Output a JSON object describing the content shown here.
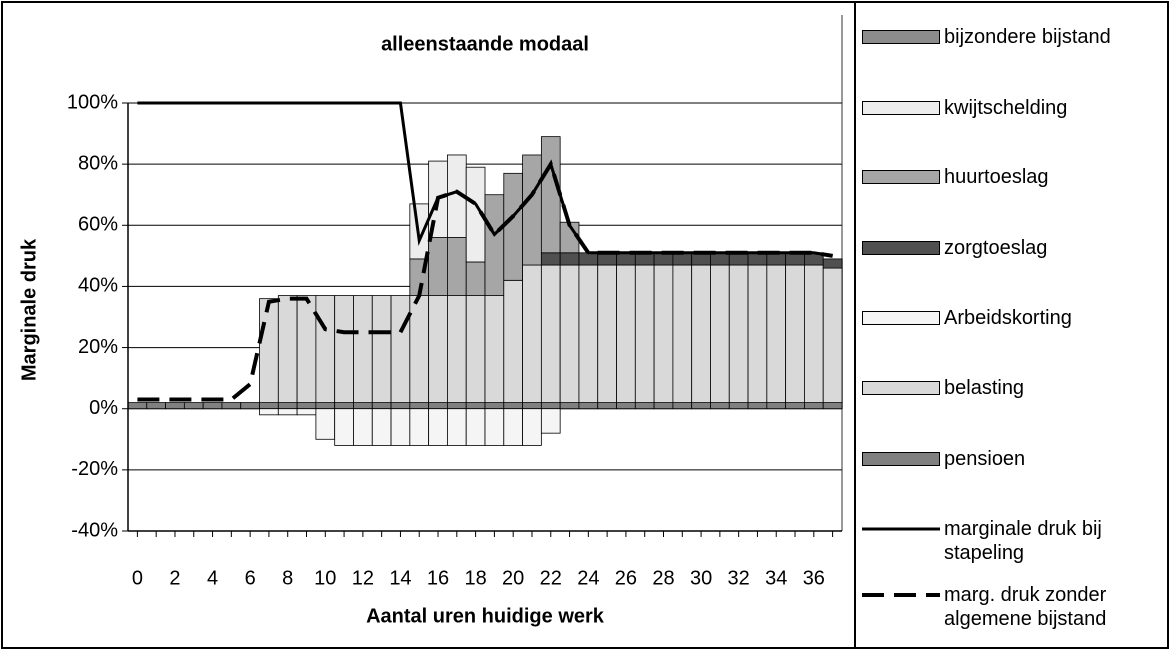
{
  "chart_data": {
    "type": "bar",
    "stacked": true,
    "title": "alleenstaande modaal",
    "x_label": "Aantal uren huidige werk",
    "y_label": "Marginale druk",
    "x": [
      0,
      1,
      2,
      3,
      4,
      5,
      6,
      7,
      8,
      9,
      10,
      11,
      12,
      13,
      14,
      15,
      16,
      17,
      18,
      19,
      20,
      21,
      22,
      23,
      24,
      25,
      26,
      27,
      28,
      29,
      30,
      31,
      32,
      33,
      34,
      35,
      36,
      37
    ],
    "xlim": [
      -0.5,
      37.5
    ],
    "xticks": [
      0,
      2,
      4,
      6,
      8,
      10,
      12,
      14,
      16,
      18,
      20,
      22,
      24,
      26,
      28,
      30,
      32,
      34,
      36
    ],
    "ylim": [
      -40,
      100
    ],
    "yticks": [
      {
        "value": -40,
        "label": "-40%"
      },
      {
        "value": -20,
        "label": "-20%"
      },
      {
        "value": 0,
        "label": "0%"
      },
      {
        "value": 20,
        "label": "20%"
      },
      {
        "value": 40,
        "label": "40%"
      },
      {
        "value": 60,
        "label": "60%"
      },
      {
        "value": 80,
        "label": "80%"
      },
      {
        "value": 100,
        "label": "100%"
      }
    ],
    "grid": true,
    "legend": "right",
    "series": [
      {
        "name": "bijzondere bijstand",
        "color": "#8c8c8c",
        "values": [
          0,
          0,
          0,
          0,
          0,
          0,
          0,
          0,
          0,
          0,
          0,
          0,
          0,
          0,
          0,
          0,
          0,
          0,
          0,
          0,
          0,
          0,
          0,
          0,
          0,
          0,
          0,
          0,
          0,
          0,
          0,
          0,
          0,
          0,
          0,
          0,
          0,
          0
        ]
      },
      {
        "name": "kwijtschelding",
        "color": "#ededed",
        "values": [
          0,
          0,
          0,
          0,
          0,
          0,
          0,
          0,
          0,
          0,
          0,
          0,
          0,
          0,
          0,
          18,
          25,
          27,
          31,
          0,
          0,
          0,
          0,
          0,
          0,
          0,
          0,
          0,
          0,
          0,
          0,
          0,
          0,
          0,
          0,
          0,
          0,
          0
        ]
      },
      {
        "name": "huurtoeslag",
        "color": "#a6a6a6",
        "values": [
          0,
          0,
          0,
          0,
          0,
          0,
          0,
          0,
          0,
          0,
          0,
          0,
          0,
          0,
          0,
          12,
          19,
          19,
          11,
          33,
          35,
          36,
          38,
          10,
          0,
          0,
          0,
          0,
          0,
          0,
          0,
          0,
          0,
          0,
          0,
          0,
          0,
          0
        ]
      },
      {
        "name": "zorgtoeslag",
        "color": "#505050",
        "values": [
          0,
          0,
          0,
          0,
          0,
          0,
          0,
          0,
          0,
          0,
          0,
          0,
          0,
          0,
          0,
          0,
          0,
          0,
          0,
          0,
          0,
          0,
          4,
          4,
          4,
          4,
          4,
          4,
          4,
          4,
          4,
          4,
          4,
          4,
          4,
          4,
          4,
          3
        ]
      },
      {
        "name": "Arbeidskorting",
        "color": "#f5f5f5",
        "values": [
          0,
          0,
          0,
          0,
          0,
          0,
          0,
          -2,
          -2,
          -2,
          -10,
          -12,
          -12,
          -12,
          -12,
          -12,
          -12,
          -12,
          -12,
          -12,
          -12,
          -12,
          -8,
          0,
          0,
          0,
          0,
          0,
          0,
          0,
          0,
          0,
          0,
          0,
          0,
          0,
          0,
          0
        ]
      },
      {
        "name": "belasting",
        "color": "#d9d9d9",
        "values": [
          0,
          0,
          0,
          0,
          0,
          0,
          0,
          34,
          35,
          35,
          35,
          35,
          35,
          35,
          35,
          35,
          35,
          35,
          35,
          35,
          40,
          45,
          45,
          45,
          45,
          45,
          45,
          45,
          45,
          45,
          45,
          45,
          45,
          45,
          45,
          45,
          45,
          44
        ]
      },
      {
        "name": "pensioen",
        "color": "#808080",
        "values": [
          2,
          2,
          2,
          2,
          2,
          2,
          2,
          2,
          2,
          2,
          2,
          2,
          2,
          2,
          2,
          2,
          2,
          2,
          2,
          2,
          2,
          2,
          2,
          2,
          2,
          2,
          2,
          2,
          2,
          2,
          2,
          2,
          2,
          2,
          2,
          2,
          2,
          2
        ]
      },
      {
        "name": "marginale druk bij stapeling",
        "type": "line",
        "color": "#000000",
        "dashed": false,
        "values": [
          100,
          100,
          100,
          100,
          100,
          100,
          100,
          100,
          100,
          100,
          100,
          100,
          100,
          100,
          100,
          55,
          69,
          71,
          67,
          57,
          63,
          70,
          80,
          60,
          51,
          51,
          51,
          51,
          51,
          51,
          51,
          51,
          51,
          51,
          51,
          51,
          51,
          50
        ]
      },
      {
        "name": "marg. druk zonder algemene bijstand",
        "type": "line",
        "color": "#000000",
        "dashed": true,
        "values": [
          3,
          3,
          3,
          3,
          3,
          3,
          8,
          35,
          36,
          36,
          26,
          25,
          25,
          25,
          25,
          37,
          69,
          71,
          67,
          57,
          63,
          70,
          80,
          60,
          51,
          51,
          51,
          51,
          51,
          51,
          51,
          51,
          51,
          51,
          51,
          51,
          51,
          50
        ]
      }
    ]
  }
}
